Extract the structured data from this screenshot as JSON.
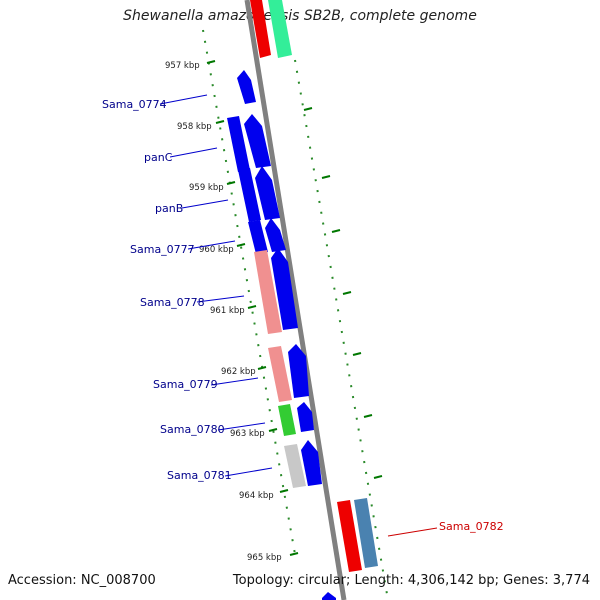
{
  "title": "Shewanella amazonensis SB2B, complete genome",
  "footer": {
    "accession": "Accession: NC_008700",
    "topology": "Topology: circular; Length: 4,306,142 bp; Genes: 3,774"
  },
  "ticks": [
    "957 kbp",
    "958 kbp",
    "959 kbp",
    "960 kbp",
    "961 kbp",
    "962 kbp",
    "963 kbp",
    "964 kbp",
    "965 kbp"
  ],
  "gene_labels": [
    "Sama_0774",
    "panC",
    "panB",
    "Sama_0777",
    "Sama_0778",
    "Sama_0779",
    "Sama_0780",
    "Sama_0781",
    "Sama_0782"
  ],
  "colors": {
    "backbone": "#808080",
    "cds": "#0000ee",
    "rna_red": "#ee0000",
    "salmon": "#f09090",
    "green": "#33cc33",
    "grey": "#c8c8c8",
    "steel": "#4a82b0",
    "mint": "#33ee99",
    "tick_green": "#007700",
    "label_blue": "#00008b",
    "label_red": "#cc0000"
  }
}
